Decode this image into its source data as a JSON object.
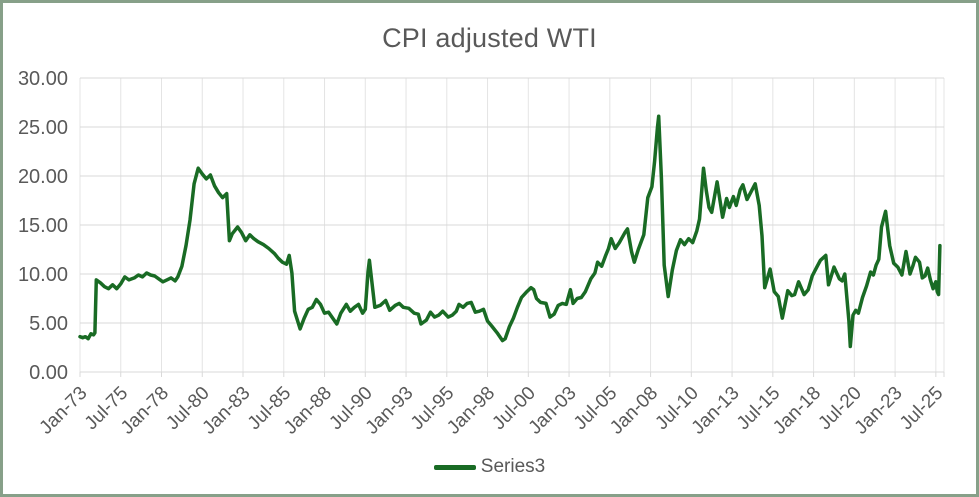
{
  "frame": {
    "background": "#ffffff",
    "border_color": "#87a089"
  },
  "chart_data": {
    "type": "line",
    "title": "CPI adjusted WTI",
    "title_color": "#595959",
    "grid_on": true,
    "ylim": [
      0,
      30
    ],
    "y_axis": {
      "tick_labels": [
        "0.00",
        "5.00",
        "10.00",
        "15.00",
        "20.00",
        "25.00",
        "30.00"
      ],
      "tick_values": [
        0,
        5,
        10,
        15,
        20,
        25,
        30
      ],
      "label_color": "#595959",
      "grid_color": "#d9d9d9"
    },
    "x_axis": {
      "tick_labels": [
        "Jan-73",
        "Jul-75",
        "Jan-78",
        "Jul-80",
        "Jan-83",
        "Jul-85",
        "Jan-88",
        "Jul-90",
        "Jan-93",
        "Jul-95",
        "Jan-98",
        "Jul-00",
        "Jan-03",
        "Jul-05",
        "Jan-08",
        "Jul-10",
        "Jan-13",
        "Jul-15",
        "Jan-18",
        "Jul-20",
        "Jan-23",
        "Jul-25"
      ],
      "start_month": "1973-01",
      "months_per_tick": 30,
      "label_rotation_deg": -45,
      "label_color": "#595959",
      "grid_color": "#e4e4e4",
      "axis_color": "#d9d9d9"
    },
    "legend": {
      "position": "bottom",
      "entries": [
        {
          "label": "Series3",
          "color": "#196B24"
        }
      ]
    },
    "series": [
      {
        "name": "Series3",
        "color": "#196B24",
        "points": [
          [
            "1973-01",
            3.6
          ],
          [
            "1973-03",
            3.5
          ],
          [
            "1973-05",
            3.6
          ],
          [
            "1973-07",
            3.4
          ],
          [
            "1973-09",
            3.9
          ],
          [
            "1973-11",
            3.8
          ],
          [
            "1973-12",
            4.0
          ],
          [
            "1974-01",
            9.4
          ],
          [
            "1974-04",
            9.1
          ],
          [
            "1974-07",
            8.7
          ],
          [
            "1974-10",
            8.5
          ],
          [
            "1975-01",
            8.9
          ],
          [
            "1975-04",
            8.5
          ],
          [
            "1975-07",
            9.0
          ],
          [
            "1975-10",
            9.7
          ],
          [
            "1976-01",
            9.4
          ],
          [
            "1976-05",
            9.6
          ],
          [
            "1976-08",
            9.9
          ],
          [
            "1976-11",
            9.7
          ],
          [
            "1977-02",
            10.1
          ],
          [
            "1977-05",
            9.9
          ],
          [
            "1977-08",
            9.8
          ],
          [
            "1977-11",
            9.5
          ],
          [
            "1978-02",
            9.2
          ],
          [
            "1978-05",
            9.4
          ],
          [
            "1978-08",
            9.6
          ],
          [
            "1978-11",
            9.3
          ],
          [
            "1979-01",
            9.7
          ],
          [
            "1979-04",
            10.8
          ],
          [
            "1979-07",
            12.9
          ],
          [
            "1979-10",
            15.5
          ],
          [
            "1980-01",
            19.2
          ],
          [
            "1980-04",
            20.8
          ],
          [
            "1980-07",
            20.2
          ],
          [
            "1980-10",
            19.7
          ],
          [
            "1981-01",
            20.1
          ],
          [
            "1981-04",
            19.0
          ],
          [
            "1981-07",
            18.3
          ],
          [
            "1981-10",
            17.8
          ],
          [
            "1982-01",
            18.2
          ],
          [
            "1982-03",
            13.4
          ],
          [
            "1982-05",
            14.1
          ],
          [
            "1982-09",
            14.8
          ],
          [
            "1982-12",
            14.2
          ],
          [
            "1983-03",
            13.4
          ],
          [
            "1983-06",
            14.0
          ],
          [
            "1983-09",
            13.6
          ],
          [
            "1983-12",
            13.3
          ],
          [
            "1984-04",
            13.0
          ],
          [
            "1984-08",
            12.6
          ],
          [
            "1984-12",
            12.1
          ],
          [
            "1985-03",
            11.6
          ],
          [
            "1985-06",
            11.2
          ],
          [
            "1985-09",
            11.0
          ],
          [
            "1985-11",
            11.9
          ],
          [
            "1986-01",
            10.1
          ],
          [
            "1986-03",
            6.2
          ],
          [
            "1986-07",
            4.4
          ],
          [
            "1986-10",
            5.5
          ],
          [
            "1987-01",
            6.4
          ],
          [
            "1987-04",
            6.6
          ],
          [
            "1987-07",
            7.4
          ],
          [
            "1987-10",
            6.9
          ],
          [
            "1988-01",
            6.0
          ],
          [
            "1988-04",
            6.1
          ],
          [
            "1988-07",
            5.5
          ],
          [
            "1988-10",
            4.9
          ],
          [
            "1989-01",
            6.0
          ],
          [
            "1989-05",
            6.9
          ],
          [
            "1989-08",
            6.2
          ],
          [
            "1989-11",
            6.6
          ],
          [
            "1990-02",
            6.9
          ],
          [
            "1990-05",
            6.0
          ],
          [
            "1990-07",
            6.4
          ],
          [
            "1990-09",
            10.2
          ],
          [
            "1990-10",
            11.4
          ],
          [
            "1990-12",
            9.0
          ],
          [
            "1991-02",
            6.6
          ],
          [
            "1991-06",
            6.8
          ],
          [
            "1991-10",
            7.3
          ],
          [
            "1992-01",
            6.3
          ],
          [
            "1992-05",
            6.8
          ],
          [
            "1992-08",
            7.0
          ],
          [
            "1992-11",
            6.6
          ],
          [
            "1993-03",
            6.5
          ],
          [
            "1993-07",
            6.0
          ],
          [
            "1993-10",
            5.9
          ],
          [
            "1993-12",
            4.9
          ],
          [
            "1994-04",
            5.3
          ],
          [
            "1994-07",
            6.1
          ],
          [
            "1994-10",
            5.6
          ],
          [
            "1995-01",
            5.8
          ],
          [
            "1995-04",
            6.2
          ],
          [
            "1995-08",
            5.6
          ],
          [
            "1995-11",
            5.8
          ],
          [
            "1996-02",
            6.2
          ],
          [
            "1996-04",
            6.9
          ],
          [
            "1996-07",
            6.6
          ],
          [
            "1996-10",
            7.0
          ],
          [
            "1997-01",
            7.1
          ],
          [
            "1997-04",
            6.1
          ],
          [
            "1997-07",
            6.2
          ],
          [
            "1997-10",
            6.4
          ],
          [
            "1998-01",
            5.2
          ],
          [
            "1998-04",
            4.7
          ],
          [
            "1998-08",
            4.0
          ],
          [
            "1998-12",
            3.2
          ],
          [
            "1999-02",
            3.4
          ],
          [
            "1999-05",
            4.6
          ],
          [
            "1999-08",
            5.5
          ],
          [
            "1999-11",
            6.6
          ],
          [
            "2000-02",
            7.6
          ],
          [
            "2000-06",
            8.2
          ],
          [
            "2000-09",
            8.6
          ],
          [
            "2000-11",
            8.4
          ],
          [
            "2001-01",
            7.5
          ],
          [
            "2001-04",
            7.1
          ],
          [
            "2001-08",
            7.0
          ],
          [
            "2001-11",
            5.6
          ],
          [
            "2002-02",
            5.9
          ],
          [
            "2002-05",
            6.8
          ],
          [
            "2002-08",
            7.0
          ],
          [
            "2002-11",
            6.9
          ],
          [
            "2003-02",
            8.4
          ],
          [
            "2003-04",
            7.0
          ],
          [
            "2003-07",
            7.5
          ],
          [
            "2003-10",
            7.6
          ],
          [
            "2004-01",
            8.2
          ],
          [
            "2004-05",
            9.5
          ],
          [
            "2004-08",
            10.1
          ],
          [
            "2004-10",
            11.2
          ],
          [
            "2005-01",
            10.8
          ],
          [
            "2005-04",
            11.9
          ],
          [
            "2005-06",
            12.6
          ],
          [
            "2005-08",
            13.6
          ],
          [
            "2005-11",
            12.6
          ],
          [
            "2006-02",
            13.2
          ],
          [
            "2006-06",
            14.2
          ],
          [
            "2006-08",
            14.6
          ],
          [
            "2006-11",
            12.3
          ],
          [
            "2007-01",
            11.2
          ],
          [
            "2007-04",
            12.5
          ],
          [
            "2007-08",
            14.0
          ],
          [
            "2007-11",
            17.8
          ],
          [
            "2008-02",
            18.9
          ],
          [
            "2008-04",
            21.5
          ],
          [
            "2008-06",
            24.9
          ],
          [
            "2008-07",
            26.1
          ],
          [
            "2008-09",
            19.8
          ],
          [
            "2008-11",
            10.9
          ],
          [
            "2009-02",
            7.7
          ],
          [
            "2009-05",
            10.4
          ],
          [
            "2009-08",
            12.4
          ],
          [
            "2009-11",
            13.5
          ],
          [
            "2010-02",
            13.0
          ],
          [
            "2010-05",
            13.6
          ],
          [
            "2010-08",
            13.2
          ],
          [
            "2010-11",
            14.4
          ],
          [
            "2011-01",
            15.6
          ],
          [
            "2011-04",
            20.8
          ],
          [
            "2011-06",
            18.5
          ],
          [
            "2011-08",
            16.8
          ],
          [
            "2011-10",
            16.3
          ],
          [
            "2012-02",
            19.4
          ],
          [
            "2012-06",
            15.8
          ],
          [
            "2012-09",
            17.7
          ],
          [
            "2012-11",
            16.8
          ],
          [
            "2013-02",
            17.9
          ],
          [
            "2013-04",
            17.0
          ],
          [
            "2013-07",
            18.6
          ],
          [
            "2013-09",
            19.1
          ],
          [
            "2013-12",
            17.6
          ],
          [
            "2014-03",
            18.4
          ],
          [
            "2014-06",
            19.2
          ],
          [
            "2014-09",
            17.0
          ],
          [
            "2014-11",
            13.9
          ],
          [
            "2015-01",
            8.6
          ],
          [
            "2015-05",
            10.5
          ],
          [
            "2015-08",
            8.2
          ],
          [
            "2015-11",
            7.7
          ],
          [
            "2016-02",
            5.5
          ],
          [
            "2016-06",
            8.3
          ],
          [
            "2016-09",
            7.8
          ],
          [
            "2016-11",
            7.9
          ],
          [
            "2017-02",
            9.2
          ],
          [
            "2017-06",
            7.9
          ],
          [
            "2017-09",
            8.4
          ],
          [
            "2017-12",
            9.8
          ],
          [
            "2018-03",
            10.6
          ],
          [
            "2018-06",
            11.4
          ],
          [
            "2018-10",
            11.9
          ],
          [
            "2018-12",
            8.9
          ],
          [
            "2019-04",
            10.7
          ],
          [
            "2019-08",
            9.5
          ],
          [
            "2019-10",
            9.3
          ],
          [
            "2019-12",
            10.0
          ],
          [
            "2020-03",
            5.2
          ],
          [
            "2020-04",
            2.6
          ],
          [
            "2020-06",
            5.8
          ],
          [
            "2020-08",
            6.3
          ],
          [
            "2020-10",
            6.0
          ],
          [
            "2021-01",
            7.6
          ],
          [
            "2021-04",
            8.8
          ],
          [
            "2021-07",
            10.2
          ],
          [
            "2021-09",
            9.9
          ],
          [
            "2021-11",
            10.9
          ],
          [
            "2022-01",
            11.5
          ],
          [
            "2022-03",
            14.8
          ],
          [
            "2022-06",
            16.4
          ],
          [
            "2022-09",
            12.9
          ],
          [
            "2022-12",
            11.1
          ],
          [
            "2023-03",
            10.7
          ],
          [
            "2023-06",
            9.9
          ],
          [
            "2023-09",
            12.3
          ],
          [
            "2023-12",
            10.0
          ],
          [
            "2024-02",
            10.8
          ],
          [
            "2024-04",
            11.7
          ],
          [
            "2024-07",
            11.2
          ],
          [
            "2024-09",
            9.6
          ],
          [
            "2024-11",
            9.8
          ],
          [
            "2025-01",
            10.6
          ],
          [
            "2025-03",
            9.4
          ],
          [
            "2025-05",
            8.5
          ],
          [
            "2025-07",
            9.2
          ],
          [
            "2025-08",
            8.2
          ],
          [
            "2025-09",
            7.9
          ],
          [
            "2025-10",
            12.9
          ]
        ]
      }
    ]
  }
}
